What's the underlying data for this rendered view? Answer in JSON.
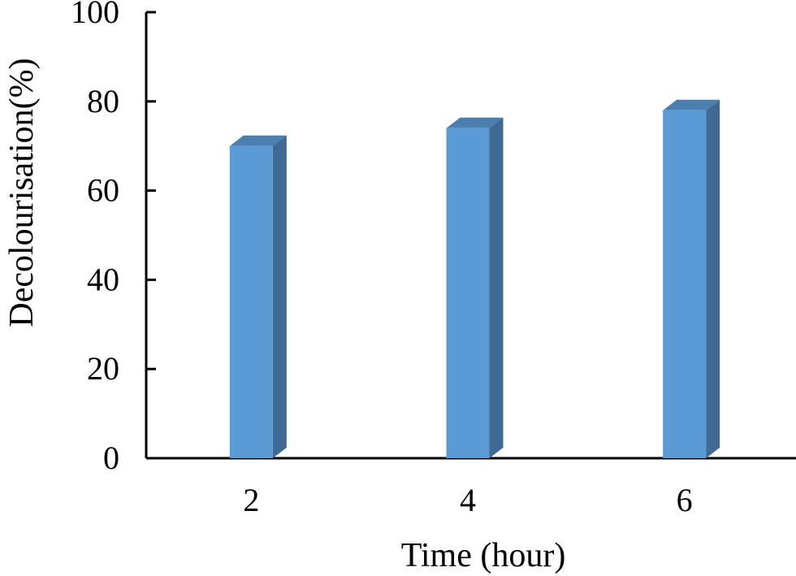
{
  "chart_data": {
    "type": "bar",
    "style": "3d-column",
    "categories": [
      "2",
      "4",
      "6"
    ],
    "series": [
      {
        "values": [
          70,
          74,
          78
        ]
      }
    ],
    "xlabel": "Time (hour)",
    "ylabel": "Decolourisation(%)",
    "ylim": [
      0,
      100
    ],
    "yticks": [
      "0",
      "20",
      "40",
      "60",
      "80",
      "100"
    ],
    "grid": false,
    "legend": "none",
    "colors": {
      "bar_front": "#5B9BD5",
      "bar_side": "#3F6A93",
      "bar_top": "#4A7FB0",
      "axis": "#000000"
    }
  }
}
